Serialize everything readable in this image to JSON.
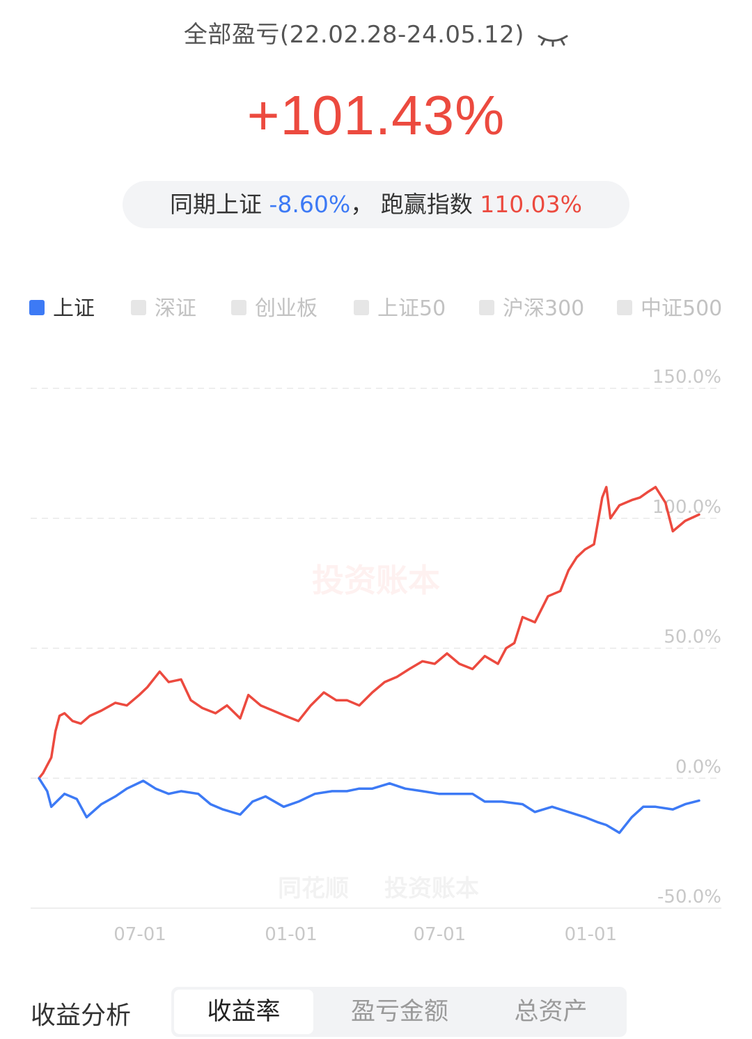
{
  "header": {
    "title": "全部盈亏(22.02.28-24.05.12)",
    "eye_icon": "eye-closed-icon"
  },
  "pnl_value": "+101.43%",
  "compare": {
    "prefix": "同期上证",
    "index_return": "-8.60%",
    "separator": "，",
    "beat_label": "跑赢指数",
    "beat_value": "110.03%",
    "colors": {
      "negative": "#3d7af5",
      "positive": "#ec4a3f"
    }
  },
  "legend": {
    "items": [
      {
        "label": "上证",
        "active": true
      },
      {
        "label": "深证",
        "active": false
      },
      {
        "label": "创业板",
        "active": false
      },
      {
        "label": "上证50",
        "active": false
      },
      {
        "label": "沪深300",
        "active": false
      },
      {
        "label": "中证500",
        "active": false
      }
    ]
  },
  "watermarks": {
    "main": "投资账本",
    "brand": "同花顺",
    "sub": "投资账本"
  },
  "chart_data": {
    "type": "line",
    "y_ticks": [
      "150.0%",
      "100.0%",
      "50.0%",
      "0.0%",
      "-50.0%"
    ],
    "ylim": [
      -50,
      150
    ],
    "x_ticks": [
      "07-01",
      "01-01",
      "07-01",
      "01-01"
    ],
    "x_tick_dates": [
      "2022-07-01",
      "2023-01-01",
      "2023-07-01",
      "2024-01-01"
    ],
    "x_range": [
      "2022-02-28",
      "2024-05-12"
    ],
    "grid": true,
    "series": [
      {
        "color": "#ec4a3f",
        "points": [
          [
            "2022-02-28",
            0
          ],
          [
            "2022-03-05",
            2
          ],
          [
            "2022-03-10",
            5
          ],
          [
            "2022-03-15",
            8
          ],
          [
            "2022-03-20",
            18
          ],
          [
            "2022-03-25",
            24
          ],
          [
            "2022-03-31",
            25
          ],
          [
            "2022-04-10",
            22
          ],
          [
            "2022-04-20",
            21
          ],
          [
            "2022-05-01",
            24
          ],
          [
            "2022-05-15",
            26
          ],
          [
            "2022-06-01",
            29
          ],
          [
            "2022-06-15",
            28
          ],
          [
            "2022-06-30",
            32
          ],
          [
            "2022-07-10",
            35
          ],
          [
            "2022-07-20",
            39
          ],
          [
            "2022-07-25",
            41
          ],
          [
            "2022-08-05",
            37
          ],
          [
            "2022-08-20",
            38
          ],
          [
            "2022-09-01",
            30
          ],
          [
            "2022-09-15",
            27
          ],
          [
            "2022-10-01",
            25
          ],
          [
            "2022-10-15",
            28
          ],
          [
            "2022-10-31",
            23
          ],
          [
            "2022-11-10",
            32
          ],
          [
            "2022-11-25",
            28
          ],
          [
            "2022-12-10",
            26
          ],
          [
            "2022-12-25",
            24
          ],
          [
            "2023-01-10",
            22
          ],
          [
            "2023-01-25",
            28
          ],
          [
            "2023-02-10",
            33
          ],
          [
            "2023-02-25",
            30
          ],
          [
            "2023-03-10",
            30
          ],
          [
            "2023-03-25",
            28
          ],
          [
            "2023-04-10",
            33
          ],
          [
            "2023-04-25",
            37
          ],
          [
            "2023-05-10",
            39
          ],
          [
            "2023-05-25",
            42
          ],
          [
            "2023-06-10",
            45
          ],
          [
            "2023-06-25",
            44
          ],
          [
            "2023-07-10",
            48
          ],
          [
            "2023-07-25",
            44
          ],
          [
            "2023-08-10",
            42
          ],
          [
            "2023-08-25",
            47
          ],
          [
            "2023-09-10",
            44
          ],
          [
            "2023-09-20",
            50
          ],
          [
            "2023-09-30",
            52
          ],
          [
            "2023-10-10",
            62
          ],
          [
            "2023-10-25",
            60
          ],
          [
            "2023-11-10",
            70
          ],
          [
            "2023-11-25",
            72
          ],
          [
            "2023-12-05",
            80
          ],
          [
            "2023-12-15",
            85
          ],
          [
            "2023-12-25",
            88
          ],
          [
            "2024-01-05",
            90
          ],
          [
            "2024-01-15",
            108
          ],
          [
            "2024-01-20",
            112
          ],
          [
            "2024-01-25",
            100
          ],
          [
            "2024-02-05",
            105
          ],
          [
            "2024-02-20",
            107
          ],
          [
            "2024-03-01",
            108
          ],
          [
            "2024-03-10",
            110
          ],
          [
            "2024-03-20",
            112
          ],
          [
            "2024-04-01",
            106
          ],
          [
            "2024-04-10",
            95
          ],
          [
            "2024-04-25",
            99
          ],
          [
            "2024-05-12",
            101.43
          ]
        ]
      },
      {
        "name": "上证",
        "color": "#3d7af5",
        "points": [
          [
            "2022-02-28",
            0
          ],
          [
            "2022-03-10",
            -5
          ],
          [
            "2022-03-15",
            -11
          ],
          [
            "2022-03-31",
            -6
          ],
          [
            "2022-04-15",
            -8
          ],
          [
            "2022-04-27",
            -15
          ],
          [
            "2022-05-15",
            -10
          ],
          [
            "2022-06-01",
            -7
          ],
          [
            "2022-06-15",
            -4
          ],
          [
            "2022-07-05",
            -1
          ],
          [
            "2022-07-20",
            -4
          ],
          [
            "2022-08-05",
            -6
          ],
          [
            "2022-08-20",
            -5
          ],
          [
            "2022-09-10",
            -6
          ],
          [
            "2022-09-25",
            -10
          ],
          [
            "2022-10-10",
            -12
          ],
          [
            "2022-10-31",
            -14
          ],
          [
            "2022-11-15",
            -9
          ],
          [
            "2022-12-01",
            -7
          ],
          [
            "2022-12-23",
            -11
          ],
          [
            "2023-01-10",
            -9
          ],
          [
            "2023-01-30",
            -6
          ],
          [
            "2023-02-20",
            -5
          ],
          [
            "2023-03-10",
            -5
          ],
          [
            "2023-03-25",
            -4
          ],
          [
            "2023-04-10",
            -4
          ],
          [
            "2023-05-01",
            -2
          ],
          [
            "2023-05-20",
            -4
          ],
          [
            "2023-06-10",
            -5
          ],
          [
            "2023-06-30",
            -6
          ],
          [
            "2023-07-20",
            -6
          ],
          [
            "2023-08-10",
            -6
          ],
          [
            "2023-08-25",
            -9
          ],
          [
            "2023-09-15",
            -9
          ],
          [
            "2023-10-10",
            -10
          ],
          [
            "2023-10-25",
            -13
          ],
          [
            "2023-11-15",
            -11
          ],
          [
            "2023-12-05",
            -13
          ],
          [
            "2023-12-25",
            -15
          ],
          [
            "2024-01-10",
            -17
          ],
          [
            "2024-01-20",
            -18
          ],
          [
            "2024-02-05",
            -21
          ],
          [
            "2024-02-20",
            -15
          ],
          [
            "2024-03-05",
            -11
          ],
          [
            "2024-03-20",
            -11
          ],
          [
            "2024-04-10",
            -12
          ],
          [
            "2024-04-25",
            -10
          ],
          [
            "2024-05-12",
            -8.6
          ]
        ]
      }
    ]
  },
  "bottom": {
    "label": "收益分析",
    "tabs": [
      {
        "label": "收益率",
        "active": true
      },
      {
        "label": "盈亏金额",
        "active": false
      },
      {
        "label": "总资产",
        "active": false
      }
    ]
  }
}
